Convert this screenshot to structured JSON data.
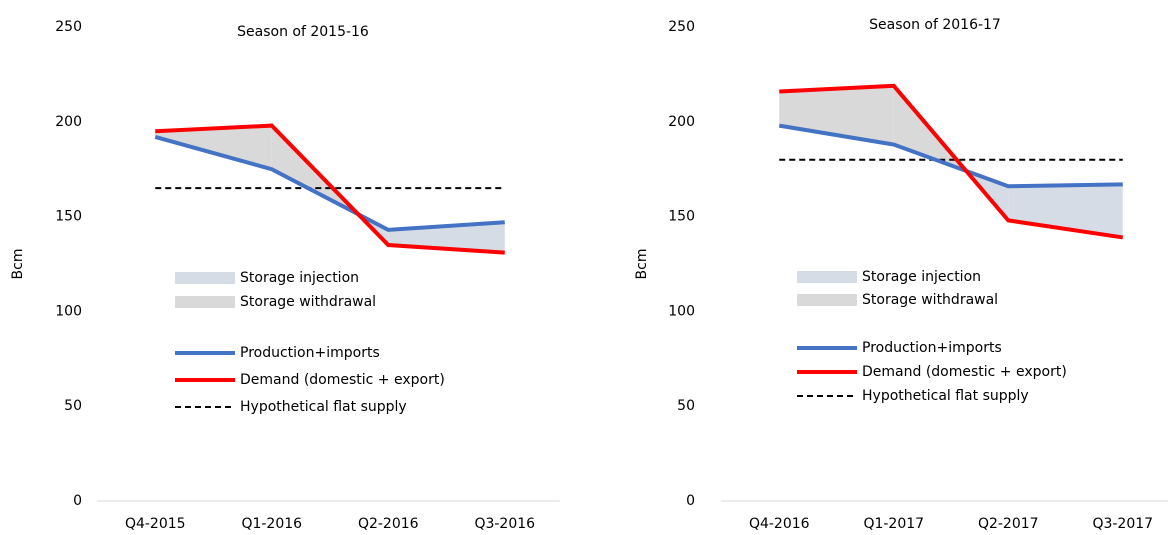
{
  "chart_data": [
    {
      "type": "line",
      "title": "Season of 2015-16",
      "ylabel": "Bcm",
      "categories": [
        "Q4-2015",
        "Q1-2016",
        "Q2-2016",
        "Q3-2016"
      ],
      "ylim": [
        0,
        250
      ],
      "yticks": [
        0,
        50,
        100,
        150,
        200,
        250
      ],
      "fills": [
        {
          "name": "Storage injection",
          "color": "#d6dce5"
        },
        {
          "name": "Storage withdrawal",
          "color": "#d9d9d9"
        }
      ],
      "series": [
        {
          "name": "Production+imports",
          "color": "#4472c4",
          "style": "solid",
          "values": [
            192,
            175,
            143,
            147
          ]
        },
        {
          "name": "Demand (domestic + export)",
          "color": "#ff0000",
          "style": "solid",
          "values": [
            195,
            198,
            135,
            131
          ]
        },
        {
          "name": "Hypothetical flat supply",
          "color": "#000000",
          "style": "dashed",
          "values": [
            165,
            165,
            165,
            165
          ]
        }
      ]
    },
    {
      "type": "line",
      "title": "Season of 2016-17",
      "ylabel": "Bcm",
      "categories": [
        "Q4-2016",
        "Q1-2017",
        "Q2-2017",
        "Q3-2017"
      ],
      "ylim": [
        0,
        250
      ],
      "yticks": [
        0,
        50,
        100,
        150,
        200,
        250
      ],
      "fills": [
        {
          "name": "Storage injection",
          "color": "#d6dce5"
        },
        {
          "name": "Storage withdrawal",
          "color": "#d9d9d9"
        }
      ],
      "series": [
        {
          "name": "Production+imports",
          "color": "#4472c4",
          "style": "solid",
          "values": [
            198,
            188,
            166,
            167
          ]
        },
        {
          "name": "Demand (domestic + export)",
          "color": "#ff0000",
          "style": "solid",
          "values": [
            216,
            219,
            148,
            139
          ]
        },
        {
          "name": "Hypothetical flat supply",
          "color": "#000000",
          "style": "dashed",
          "values": [
            180,
            180,
            180,
            180
          ]
        }
      ]
    }
  ]
}
